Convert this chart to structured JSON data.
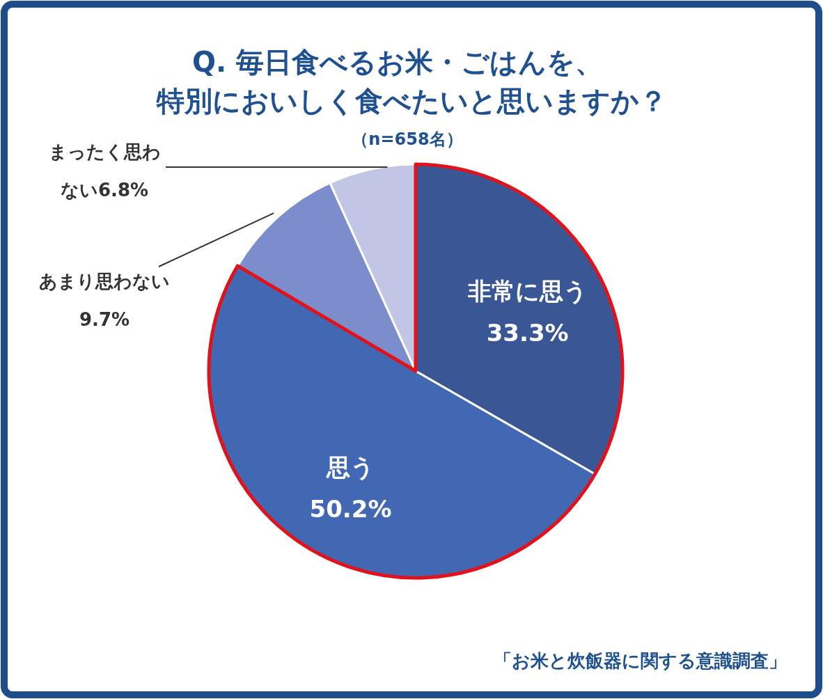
{
  "chart_data": {
    "type": "pie",
    "title": "Q. 毎日食べるお米・ごはんを、特別においしく食べたいと思いますか？",
    "subtitle": "（n=658名）",
    "categories": [
      "非常に思う",
      "思う",
      "あまり思わない",
      "まったく思わない"
    ],
    "values": [
      33.3,
      50.2,
      9.7,
      6.8
    ],
    "colors": [
      "#3a5795",
      "#4268b3",
      "#7b8ecb",
      "#c0c6e3"
    ],
    "value_labels": [
      "33.3%",
      "50.2%",
      "9.7%",
      "6.8%"
    ],
    "annotations": [
      "「お米と炊飯器に関する意識調査」"
    ]
  }
}
